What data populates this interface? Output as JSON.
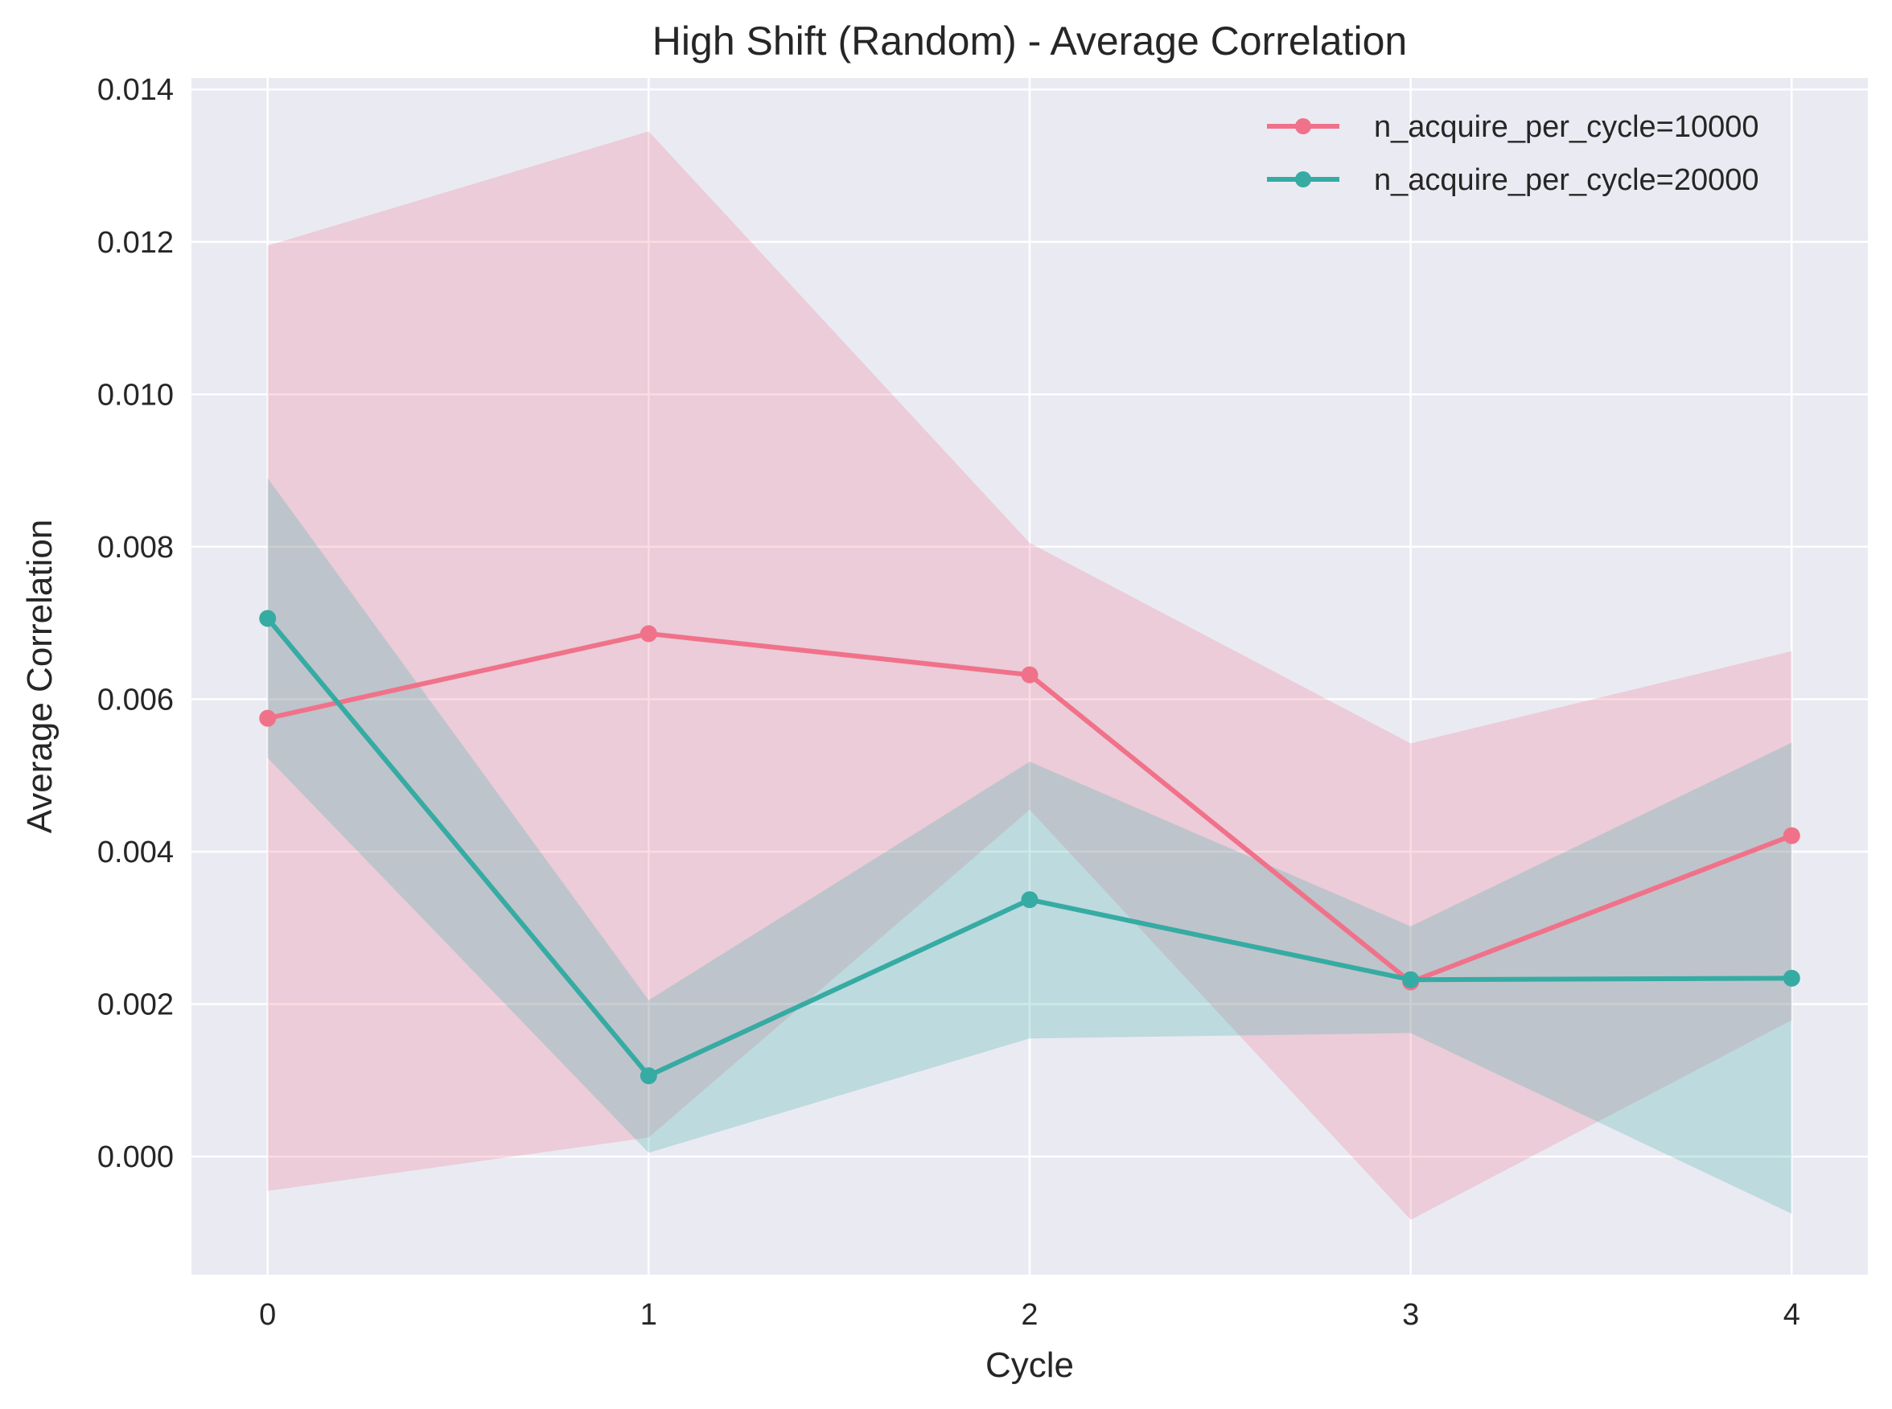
{
  "chart_data": {
    "type": "line",
    "title": "High Shift (Random) - Average Correlation",
    "xlabel": "Cycle",
    "ylabel": "Average Correlation",
    "x": [
      0,
      1,
      2,
      3,
      4
    ],
    "xlim": [
      -0.2,
      4.2
    ],
    "ylim": [
      -0.00155,
      0.01415
    ],
    "xticks": [
      "0",
      "1",
      "2",
      "3",
      "4"
    ],
    "yticks": [
      "0.000",
      "0.002",
      "0.004",
      "0.006",
      "0.008",
      "0.010",
      "0.012",
      "0.014"
    ],
    "grid": true,
    "legend_position": "top-right",
    "series": [
      {
        "name": "n_acquire_per_cycle=10000",
        "color": "#f0728a",
        "values": [
          0.00575,
          0.00686,
          0.00632,
          0.00229,
          0.00421
        ],
        "band_lower": [
          -0.00045,
          0.00025,
          0.00455,
          -0.00083,
          0.00179
        ],
        "band_upper": [
          0.01195,
          0.01345,
          0.00805,
          0.00542,
          0.00663
        ]
      },
      {
        "name": "n_acquire_per_cycle=20000",
        "color": "#36aba3",
        "values": [
          0.00706,
          0.00106,
          0.00337,
          0.00232,
          0.00234
        ],
        "band_lower": [
          0.00523,
          5e-05,
          0.00155,
          0.00162,
          -0.00075
        ],
        "band_upper": [
          0.0089,
          0.00205,
          0.00518,
          0.00302,
          0.00543
        ]
      }
    ]
  }
}
